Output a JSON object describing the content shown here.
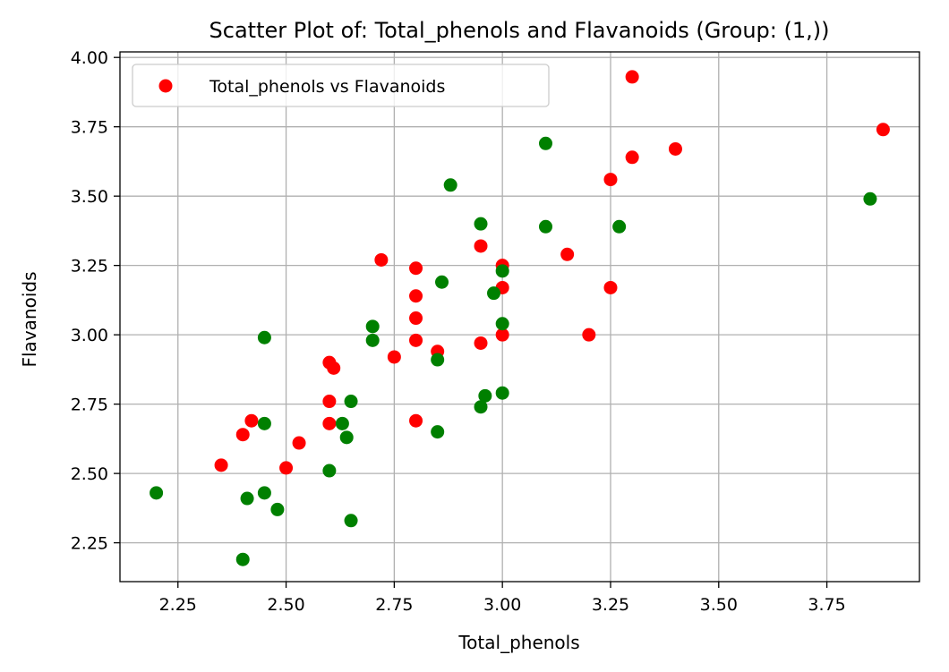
{
  "chart_data": {
    "type": "scatter",
    "title": "Scatter Plot of: Total_phenols and Flavanoids (Group: (1,))",
    "xlabel": "Total_phenols",
    "ylabel": "Flavanoids",
    "xlim": [
      2.116,
      3.964
    ],
    "ylim": [
      2.11,
      4.02
    ],
    "xticks": [
      2.25,
      2.5,
      2.75,
      3.0,
      3.25,
      3.5,
      3.75
    ],
    "xtick_labels": [
      "2.25",
      "2.50",
      "2.75",
      "3.00",
      "3.25",
      "3.50",
      "3.75"
    ],
    "yticks": [
      2.25,
      2.5,
      2.75,
      3.0,
      3.25,
      3.5,
      3.75,
      4.0
    ],
    "ytick_labels": [
      "2.25",
      "2.50",
      "2.75",
      "3.00",
      "3.25",
      "3.50",
      "3.75",
      "4.00"
    ],
    "grid": true,
    "legend": {
      "placement": "top-left",
      "label": "Total_phenols vs Flavanoids",
      "color": "#ff0000"
    },
    "series": [
      {
        "color": "#ff0000",
        "points": [
          [
            3.3,
            3.93
          ],
          [
            3.88,
            3.74
          ],
          [
            3.4,
            3.67
          ],
          [
            3.3,
            3.64
          ],
          [
            3.25,
            3.56
          ],
          [
            2.95,
            3.32
          ],
          [
            3.15,
            3.29
          ],
          [
            2.72,
            3.27
          ],
          [
            3.0,
            3.25
          ],
          [
            2.8,
            3.24
          ],
          [
            3.25,
            3.17
          ],
          [
            3.0,
            3.17
          ],
          [
            2.8,
            3.14
          ],
          [
            2.8,
            3.06
          ],
          [
            3.2,
            3.0
          ],
          [
            3.0,
            3.0
          ],
          [
            2.8,
            2.98
          ],
          [
            2.95,
            2.97
          ],
          [
            2.85,
            2.94
          ],
          [
            2.75,
            2.92
          ],
          [
            2.6,
            2.9
          ],
          [
            2.61,
            2.88
          ],
          [
            2.6,
            2.76
          ],
          [
            2.42,
            2.69
          ],
          [
            2.8,
            2.69
          ],
          [
            2.6,
            2.68
          ],
          [
            2.4,
            2.64
          ],
          [
            2.53,
            2.61
          ],
          [
            2.35,
            2.53
          ],
          [
            2.5,
            2.52
          ]
        ]
      },
      {
        "color": "#008000",
        "points": [
          [
            3.1,
            3.69
          ],
          [
            2.88,
            3.54
          ],
          [
            3.85,
            3.49
          ],
          [
            2.95,
            3.4
          ],
          [
            3.1,
            3.39
          ],
          [
            3.27,
            3.39
          ],
          [
            3.0,
            3.23
          ],
          [
            2.86,
            3.19
          ],
          [
            2.98,
            3.15
          ],
          [
            3.0,
            3.04
          ],
          [
            2.7,
            3.03
          ],
          [
            2.45,
            2.99
          ],
          [
            2.7,
            2.98
          ],
          [
            2.85,
            2.91
          ],
          [
            3.0,
            2.79
          ],
          [
            2.96,
            2.78
          ],
          [
            2.65,
            2.76
          ],
          [
            2.95,
            2.74
          ],
          [
            2.45,
            2.68
          ],
          [
            2.63,
            2.68
          ],
          [
            2.85,
            2.65
          ],
          [
            2.64,
            2.63
          ],
          [
            2.6,
            2.51
          ],
          [
            2.2,
            2.43
          ],
          [
            2.45,
            2.43
          ],
          [
            2.41,
            2.41
          ],
          [
            2.48,
            2.37
          ],
          [
            2.65,
            2.33
          ],
          [
            2.4,
            2.19
          ]
        ]
      }
    ]
  }
}
